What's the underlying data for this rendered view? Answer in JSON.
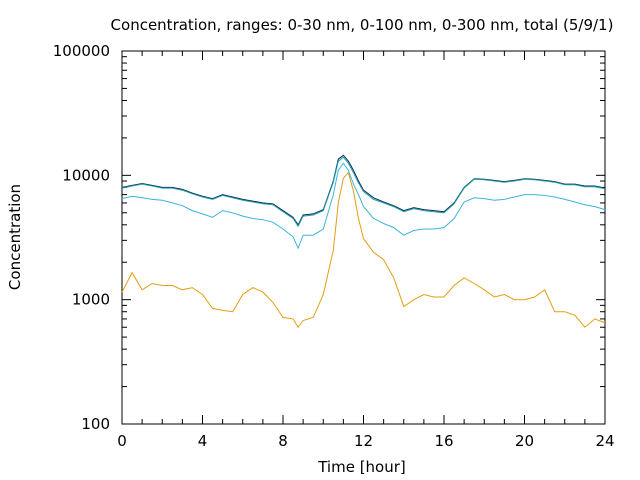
{
  "chart_data": {
    "type": "line",
    "title": "Concentration, ranges: 0-30 nm, 0-100 nm, 0-300 nm, total (5/9/1)",
    "xlabel": "Time [hour]",
    "ylabel": "Concentration",
    "xlim": [
      0,
      24
    ],
    "ylim": [
      100,
      100000
    ],
    "yscale": "log",
    "grid": false,
    "x_ticks": [
      "0",
      "4",
      "8",
      "12",
      "16",
      "20",
      "24"
    ],
    "y_ticks": [
      "100",
      "1000",
      "10000",
      "100000"
    ],
    "x": [
      0,
      0.5,
      1,
      1.5,
      2,
      2.5,
      3,
      3.5,
      4,
      4.5,
      5,
      5.5,
      6,
      6.5,
      7,
      7.5,
      8,
      8.5,
      8.75,
      9,
      9.5,
      10,
      10.5,
      10.75,
      11,
      11.25,
      11.5,
      11.75,
      12,
      12.5,
      13,
      13.5,
      14,
      14.5,
      15,
      15.5,
      16,
      16.5,
      17,
      17.5,
      18,
      18.5,
      19,
      19.5,
      20,
      20.5,
      21,
      21.5,
      22,
      22.5,
      23,
      23.5,
      24
    ],
    "series": [
      {
        "color": "#0b2e59",
        "values": [
          8000,
          8300,
          8600,
          8300,
          8000,
          8000,
          7700,
          7200,
          6800,
          6500,
          7000,
          6700,
          6400,
          6200,
          6000,
          5900,
          5200,
          4600,
          4000,
          4800,
          4900,
          5300,
          9000,
          13500,
          14500,
          13000,
          11000,
          9000,
          7600,
          6600,
          6100,
          5700,
          5200,
          5500,
          5300,
          5200,
          5100,
          6000,
          8000,
          9400,
          9300,
          9100,
          8900,
          9100,
          9400,
          9300,
          9100,
          8900,
          8500,
          8500,
          8200,
          8200,
          7900
        ]
      },
      {
        "color": "#1f9ea8",
        "values": [
          7900,
          8200,
          8500,
          8200,
          7900,
          7900,
          7600,
          7100,
          6700,
          6400,
          6900,
          6600,
          6300,
          6100,
          5900,
          5800,
          5100,
          4500,
          3900,
          4700,
          4800,
          5200,
          8800,
          13000,
          14000,
          12500,
          10500,
          8700,
          7400,
          6400,
          6000,
          5600,
          5100,
          5400,
          5200,
          5100,
          5000,
          5900,
          7900,
          9300,
          9200,
          9000,
          8800,
          9000,
          9300,
          9200,
          9000,
          8800,
          8400,
          8400,
          8100,
          8100,
          7800
        ]
      },
      {
        "color": "#3eb4dc",
        "values": [
          6500,
          6800,
          6600,
          6400,
          6300,
          6000,
          5700,
          5200,
          4900,
          4600,
          5200,
          5000,
          4700,
          4500,
          4400,
          4200,
          3700,
          3200,
          2600,
          3300,
          3300,
          3700,
          7000,
          11000,
          12500,
          11000,
          8500,
          7000,
          5600,
          4500,
          4100,
          3800,
          3300,
          3600,
          3700,
          3700,
          3800,
          4500,
          6100,
          6600,
          6500,
          6300,
          6400,
          6700,
          7000,
          7000,
          6900,
          6700,
          6400,
          6100,
          5800,
          5600,
          5300
        ]
      },
      {
        "color": "#e39e12",
        "values": [
          1150,
          1650,
          1200,
          1350,
          1300,
          1300,
          1200,
          1250,
          1100,
          850,
          820,
          800,
          1100,
          1250,
          1150,
          950,
          720,
          700,
          600,
          680,
          720,
          1100,
          2500,
          6000,
          9500,
          10500,
          7500,
          4500,
          3100,
          2400,
          2100,
          1500,
          880,
          1000,
          1100,
          1050,
          1050,
          1300,
          1500,
          1350,
          1200,
          1050,
          1100,
          1000,
          1000,
          1050,
          1200,
          800,
          800,
          750,
          600,
          700,
          650
        ]
      }
    ]
  }
}
